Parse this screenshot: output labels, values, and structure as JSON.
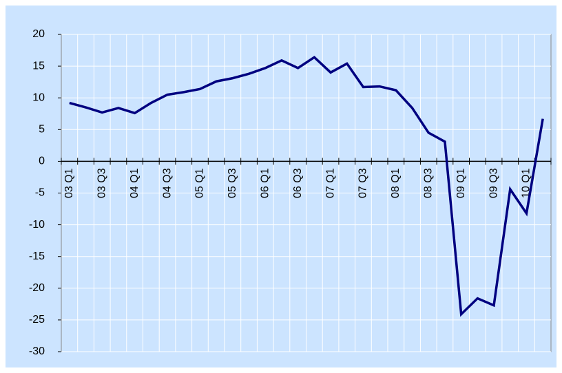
{
  "chart_data": {
    "type": "line",
    "categories": [
      "03 Q1",
      null,
      "03 Q3",
      null,
      "04 Q1",
      null,
      "04 Q3",
      null,
      "05 Q1",
      null,
      "05 Q3",
      null,
      "06 Q1",
      null,
      "06 Q3",
      null,
      "07 Q1",
      null,
      "07 Q3",
      null,
      "08 Q1",
      null,
      "08 Q3",
      null,
      "09 Q1",
      null,
      "09 Q3",
      null,
      "10 Q1",
      null
    ],
    "series": [
      {
        "color": "#000080",
        "values": [
          9.2,
          8.5,
          7.7,
          8.4,
          7.6,
          9.2,
          10.5,
          10.9,
          11.4,
          12.6,
          13.1,
          13.8,
          14.7,
          15.9,
          14.7,
          16.4,
          14.0,
          15.4,
          11.7,
          11.8,
          11.2,
          8.4,
          4.5,
          3.1,
          -24.1,
          -21.6,
          -22.7,
          -4.4,
          -8.2,
          6.7
        ]
      }
    ],
    "ylim": [
      -30,
      20
    ],
    "yticks": [
      -30,
      -25,
      -20,
      -15,
      -10,
      -5,
      0,
      5,
      10,
      15,
      20
    ],
    "grid": true
  }
}
